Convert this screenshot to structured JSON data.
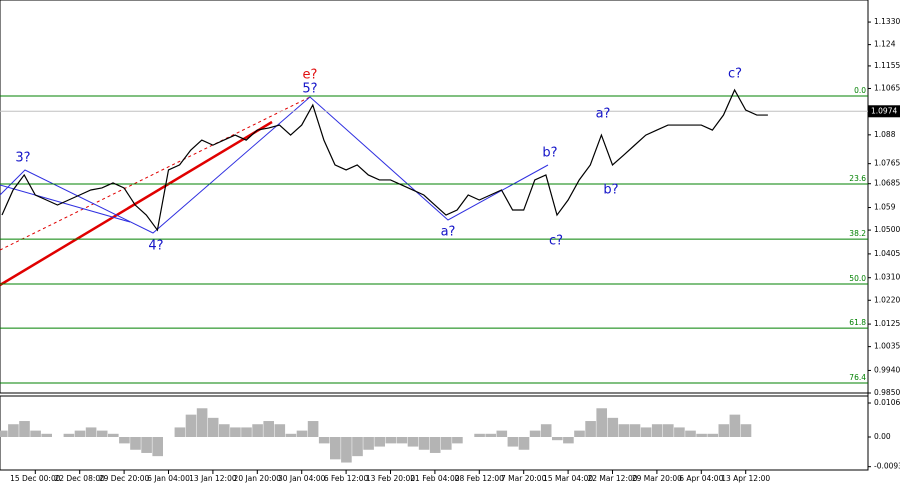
{
  "chart_data": {
    "type": "line",
    "categories": [
      null,
      null,
      null,
      "15 Dec 00:00",
      null,
      null,
      null,
      "22 Dec 08:00",
      null,
      null,
      null,
      "29 Dec 20:00",
      null,
      null,
      null,
      "6 Jan 04:00",
      null,
      null,
      null,
      "13 Jan 12:00",
      null,
      null,
      null,
      "20 Jan 20:00",
      null,
      null,
      null,
      "30 Jan 04:00",
      null,
      null,
      null,
      "6 Feb 12:00",
      null,
      null,
      null,
      "13 Feb 20:00",
      null,
      null,
      null,
      "21 Feb 04:00",
      null,
      null,
      null,
      "28 Feb 12:00",
      null,
      null,
      null,
      "7 Mar 20:00",
      null,
      null,
      null,
      "15 Mar 04:00",
      null,
      null,
      null,
      "22 Mar 12:00",
      null,
      null,
      null,
      "29 Mar 20:00",
      null,
      null,
      null,
      "6 Apr 04:00",
      null,
      null,
      null,
      "13 Apr 12:00",
      null,
      null
    ],
    "series": [
      {
        "color": "#000000",
        "values": [
          1.056,
          1.066,
          1.072,
          1.064,
          1.062,
          1.06,
          1.062,
          1.064,
          1.066,
          1.0668,
          1.0688,
          1.0668,
          1.06,
          1.056,
          1.05,
          1.074,
          1.076,
          1.0819,
          1.0859,
          1.0839,
          1.0859,
          1.0879,
          1.0859,
          1.0899,
          1.0907,
          1.0919,
          1.0879,
          1.0919,
          1.0999,
          1.0859,
          1.076,
          1.074,
          1.076,
          1.072,
          1.07,
          1.07,
          1.068,
          1.066,
          1.064,
          1.06,
          1.056,
          1.058,
          1.064,
          1.062,
          1.064,
          1.066,
          1.058,
          1.058,
          1.07,
          1.072,
          1.056,
          1.062,
          1.07,
          1.076,
          1.0879,
          1.076,
          1.0799,
          1.0839,
          1.0879,
          1.0899,
          1.0919,
          1.0919,
          1.0919,
          1.0919,
          1.0899,
          1.0959,
          1.1059,
          1.0979,
          1.0959,
          1.0959
        ]
      }
    ],
    "ylim": [
      0.985,
      1.1418
    ],
    "yticks": [
      {
        "value": 1.133,
        "label": "1.1330"
      },
      1.124,
      1.1155,
      1.1065,
      1.088,
      1.0765,
      1.0685,
      1.059,
      {
        "value": 1.05,
        "label": "1.0500"
      },
      1.0405,
      {
        "value": 1.031,
        "label": "1.0310"
      },
      {
        "value": 1.022,
        "label": "1.0220"
      },
      1.0125,
      1.0035,
      {
        "value": 0.994,
        "label": "0.9940"
      },
      {
        "value": 0.985,
        "label": "0.9850"
      }
    ],
    "current_price": 1.0974,
    "current_price_color": "#c0c0c0",
    "fib_color": "#008000",
    "fib_levels": [
      {
        "label": "0.0",
        "price": 1.1035
      },
      {
        "label": "23.6",
        "price": 1.0684
      },
      {
        "label": "38.2",
        "price": 1.0464
      },
      {
        "label": "50.0",
        "price": 1.0285
      },
      {
        "label": "61.8",
        "price": 1.0109
      },
      {
        "label": "76.4",
        "price": 0.989
      }
    ],
    "wave_labels": [
      "3?",
      "4?",
      "5?",
      "e?",
      "a?",
      "b?",
      "c?",
      "a?",
      "b?",
      "c?"
    ],
    "oscillator": {
      "type": "bar",
      "color": "#b4b4b4",
      "values": [
        0.002,
        0.004,
        0.005,
        0.002,
        0.001,
        0,
        0.001,
        0.002,
        0.003,
        0.002,
        0.001,
        -0.002,
        -0.004,
        -0.005,
        -0.006,
        0,
        0.003,
        0.007,
        0.009,
        0.006,
        0.004,
        0.003,
        0.003,
        0.004,
        0.005,
        0.004,
        0.001,
        0.002,
        0.005,
        -0.002,
        -0.007,
        -0.008,
        -0.006,
        -0.004,
        -0.003,
        -0.002,
        -0.002,
        -0.003,
        -0.004,
        -0.005,
        -0.004,
        -0.002,
        0,
        0.001,
        0.001,
        0.002,
        -0.003,
        -0.004,
        0.002,
        0.004,
        -0.001,
        -0.002,
        0.002,
        0.005,
        0.009,
        0.006,
        0.004,
        0.004,
        0.003,
        0.004,
        0.004,
        0.003,
        0.002,
        0.001,
        0.001,
        0.004,
        0.007,
        0.004,
        0,
        0
      ],
      "ylim": [
        -0.01034,
        0.01253
      ],
      "yticks": [
        0.01065,
        {
          "value": 0,
          "label": "0.00"
        },
        -0.0093
      ]
    }
  }
}
